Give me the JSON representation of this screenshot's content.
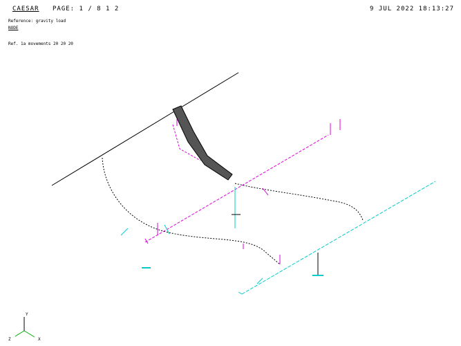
{
  "header": {
    "program": "CAESAR",
    "page": "PAGE: 1 / 8 1 2",
    "timestamp": "9 JUL 2022 18:13:27"
  },
  "info": {
    "line1": "Reference: gravity load",
    "line2": "NODE",
    "line3": "Ref. 1a movements 20 20 20"
  },
  "triad": {
    "y": "Y",
    "x": "X",
    "z": "Z"
  }
}
